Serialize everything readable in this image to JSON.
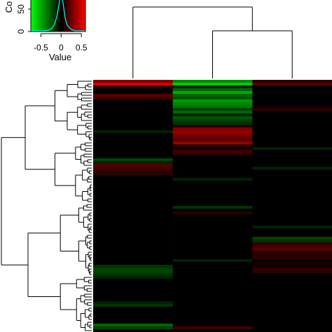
{
  "color_key": {
    "xlabel": "Value",
    "ylabel": "Count",
    "ylabel_visible": "Co",
    "x_ticks": [
      "-0.5",
      "0",
      "0.5"
    ],
    "y_ticks": [
      "0",
      "50"
    ],
    "low_color": "#00ff00",
    "mid_color": "#000000",
    "high_color": "#ff0000",
    "density_color": "#00ffff"
  },
  "chart_data": {
    "type": "heatmap",
    "title": "",
    "columns": 3,
    "rows": 90,
    "value_range": [
      -0.75,
      0.6
    ],
    "column_dendrogram": {
      "merge": [
        [
          2,
          3
        ],
        [
          1,
          "2-3"
        ]
      ]
    },
    "values": [
      [
        0.3,
        -0.4,
        0.1
      ],
      [
        0.5,
        -0.6,
        0.2
      ],
      [
        0.1,
        -0.1,
        0.0
      ],
      [
        0.0,
        -0.3,
        0.0
      ],
      [
        0.0,
        -0.5,
        0.0
      ],
      [
        0.2,
        -0.3,
        0.0
      ],
      [
        0.15,
        -0.25,
        0.0
      ],
      [
        0.0,
        -0.45,
        0.0
      ],
      [
        0.0,
        -0.4,
        0.0
      ],
      [
        0.0,
        -0.35,
        0.05
      ],
      [
        0.0,
        -0.2,
        0.1
      ],
      [
        0.0,
        -0.3,
        0.0
      ],
      [
        0.0,
        -0.1,
        0.0
      ],
      [
        0.0,
        -0.25,
        0.0
      ],
      [
        0.0,
        -0.2,
        0.0
      ],
      [
        0.0,
        -0.15,
        0.0
      ],
      [
        0.0,
        0.1,
        0.0
      ],
      [
        0.0,
        0.3,
        0.0
      ],
      [
        -0.1,
        0.35,
        0.0
      ],
      [
        0.0,
        0.3,
        0.0
      ],
      [
        0.0,
        0.25,
        0.0
      ],
      [
        0.0,
        0.2,
        0.0
      ],
      [
        0.0,
        0.35,
        0.0
      ],
      [
        0.0,
        0.1,
        0.0
      ],
      [
        0.0,
        0.05,
        -0.1
      ],
      [
        0.0,
        0.15,
        0.0
      ],
      [
        0.0,
        0.1,
        0.0
      ],
      [
        0.0,
        0.0,
        0.0
      ],
      [
        -0.2,
        0.0,
        0.0
      ],
      [
        -0.1,
        0.0,
        0.0
      ],
      [
        0.2,
        0.0,
        0.0
      ],
      [
        0.15,
        0.0,
        -0.1
      ],
      [
        0.1,
        0.0,
        0.0
      ],
      [
        0.1,
        0.0,
        0.0
      ],
      [
        0.0,
        0.0,
        0.0
      ],
      [
        0.0,
        -0.1,
        0.0
      ],
      [
        0.0,
        0.0,
        0.0
      ],
      [
        0.0,
        0.0,
        0.0
      ],
      [
        0.0,
        0.0,
        0.0
      ],
      [
        0.0,
        0.0,
        0.0
      ],
      [
        0.0,
        0.0,
        0.0
      ],
      [
        0.0,
        0.0,
        0.0
      ],
      [
        0.0,
        0.0,
        0.0
      ],
      [
        0.0,
        0.0,
        0.0
      ],
      [
        0.0,
        0.0,
        0.0
      ],
      [
        0.0,
        -0.15,
        0.0
      ],
      [
        0.0,
        0.0,
        0.0
      ],
      [
        0.0,
        0.1,
        0.0
      ],
      [
        0.0,
        0.0,
        0.0
      ],
      [
        0.0,
        0.0,
        0.0
      ],
      [
        0.0,
        0.0,
        0.0
      ],
      [
        0.0,
        0.0,
        0.0
      ],
      [
        0.0,
        0.0,
        -0.1
      ],
      [
        0.0,
        0.0,
        0.0
      ],
      [
        0.0,
        0.0,
        0.0
      ],
      [
        0.0,
        0.0,
        0.0
      ],
      [
        0.0,
        0.0,
        -0.2
      ],
      [
        0.0,
        0.0,
        -0.15
      ],
      [
        0.0,
        0.0,
        0.1
      ],
      [
        0.0,
        0.0,
        0.15
      ],
      [
        0.0,
        0.0,
        0.2
      ],
      [
        0.0,
        0.0,
        0.1
      ],
      [
        0.0,
        0.0,
        0.1
      ],
      [
        0.0,
        0.0,
        0.1
      ],
      [
        0.0,
        -0.1,
        0.0
      ],
      [
        0.0,
        0.0,
        0.05
      ],
      [
        -0.15,
        0.0,
        0.05
      ],
      [
        -0.2,
        0.0,
        0.1
      ],
      [
        -0.2,
        0.0,
        0.1
      ],
      [
        -0.15,
        0.0,
        0.0
      ],
      [
        -0.1,
        0.0,
        0.0
      ],
      [
        0.0,
        0.0,
        0.0
      ],
      [
        0.0,
        0.0,
        0.0
      ],
      [
        0.0,
        0.0,
        0.0
      ],
      [
        0.0,
        0.0,
        0.0
      ],
      [
        0.0,
        0.0,
        0.0
      ],
      [
        0.0,
        0.0,
        0.0
      ],
      [
        0.0,
        0.0,
        0.0
      ],
      [
        0.0,
        0.0,
        0.0
      ],
      [
        -0.1,
        0.0,
        0.0
      ],
      [
        -0.15,
        0.0,
        0.0
      ],
      [
        0.0,
        0.0,
        0.0
      ],
      [
        0.0,
        0.0,
        0.0
      ],
      [
        0.0,
        0.0,
        0.0
      ],
      [
        0.0,
        0.0,
        0.0
      ],
      [
        0.0,
        0.0,
        0.0
      ],
      [
        0.0,
        0.0,
        0.0
      ],
      [
        -0.3,
        0.0,
        0.0
      ],
      [
        -0.2,
        0.15,
        0.0
      ],
      [
        0.0,
        0.0,
        0.0
      ]
    ]
  }
}
